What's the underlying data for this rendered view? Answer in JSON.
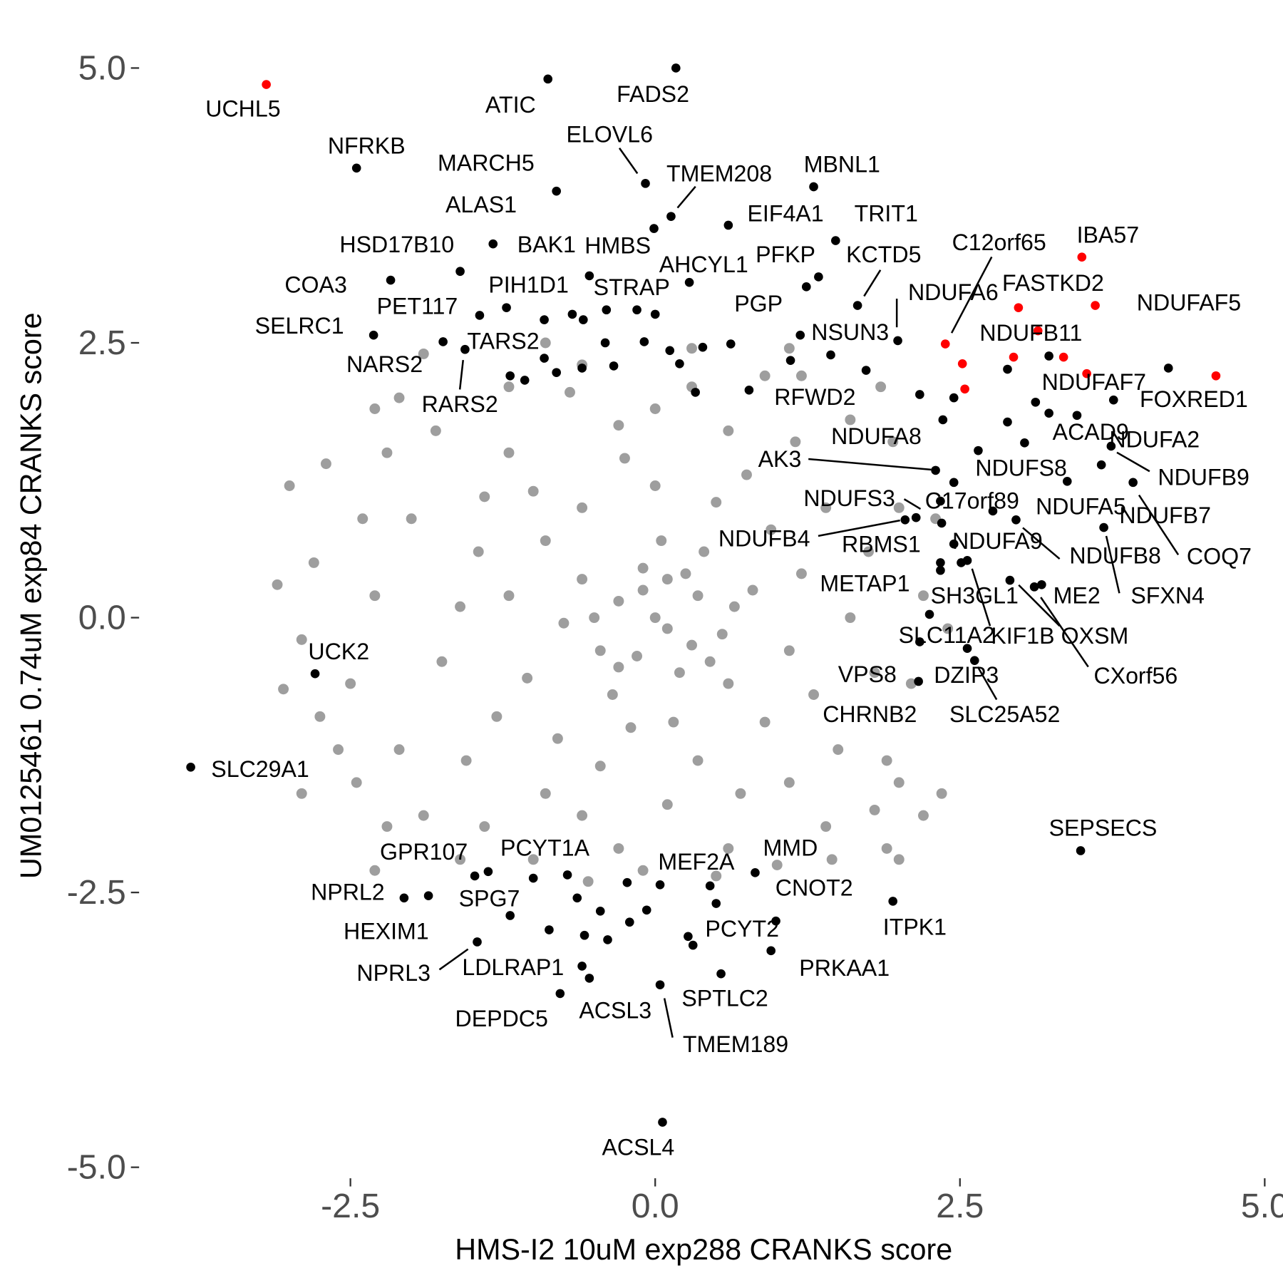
{
  "chart_data": {
    "type": "scatter",
    "xlabel": "HMS-I2 10uM exp288 CRANKS score",
    "ylabel": "UM0125461 0.74uM exp84 CRANKS score",
    "xlim": [
      -4.2,
      5.15
    ],
    "ylim": [
      -5.1,
      5.47
    ],
    "xticks": [
      -2.5,
      {
        "value": 0,
        "label": "0.0"
      },
      2.5,
      {
        "value": 5,
        "label": "5.0"
      }
    ],
    "yticks": [
      {
        "value": -5,
        "label": "-5.0"
      },
      -2.5,
      {
        "value": 0,
        "label": "0.0"
      },
      2.5,
      {
        "value": 5,
        "label": "5.0"
      }
    ],
    "grid": false,
    "series": [
      {
        "color": "#9e9e9e",
        "x": [
          0,
          -0.15,
          0.3,
          0.25,
          -0.5,
          0.65,
          -0.1,
          0.45,
          -0.3,
          0.1,
          0.1,
          0.35,
          -0.3,
          -0.1,
          0.2,
          -0.45,
          0.55,
          -0.6,
          0.05,
          0.4,
          -0.35,
          0.6,
          -0.75,
          0.8,
          -0.2,
          0.15,
          -0.9,
          0.95,
          1.1,
          -1.05,
          -0.6,
          0.5,
          0,
          -1.2,
          1.2,
          0.9,
          -0.8,
          0.35,
          -0.45,
          1.3,
          -1.3,
          -1.0,
          0.75,
          -0.25,
          1.4,
          -1.45,
          -1.6,
          1.6,
          1.5,
          -1.55,
          0.1,
          -0.3,
          0.6,
          -1.2,
          1.15,
          -0.9,
          0.7,
          1.75,
          -1.75,
          1.8,
          -1.4,
          0,
          -0.6,
          1.1,
          -2.0,
          2.0,
          2.1,
          -2.1,
          -1.8,
          1.6,
          0.3,
          -0.7,
          -0.3,
          0.6,
          1.4,
          -1.4,
          2.2,
          -2.3,
          -2.5,
          2.4,
          0.9,
          -1.2,
          -2.2,
          1.95,
          2.0,
          -1.9,
          -0.1,
          1.0,
          -1.0,
          2.3,
          -2.4,
          -2.6,
          1.2,
          -0.6,
          -2.7,
          -2.8,
          -2.75,
          -2.9,
          -2.2,
          1.9,
          2.2,
          2.0,
          1.9,
          -1.9,
          -2.1,
          -3.0,
          -2.9,
          -2.3,
          -2.3,
          0.3,
          1.1,
          -0.9,
          2.35,
          1.85,
          1.8,
          -3.1,
          -3.05,
          -2.45,
          0.5,
          -0.55,
          1.45,
          -1.6
        ],
        "y": [
          0,
          -0.35,
          -0.25,
          0.4,
          0,
          0.1,
          0.25,
          -0.4,
          -0.45,
          0.35,
          -0.1,
          0.2,
          0.15,
          0.45,
          -0.5,
          -0.3,
          -0.15,
          0.35,
          0.7,
          0.6,
          -0.7,
          -0.6,
          -0.05,
          0.25,
          -1.0,
          -0.95,
          0.7,
          0.8,
          -0.3,
          -0.55,
          1.0,
          1.05,
          1.2,
          0.2,
          0.4,
          -0.95,
          -1.1,
          -1.3,
          -1.35,
          -0.7,
          -0.9,
          1.15,
          1.3,
          1.45,
          1.0,
          0.6,
          0.1,
          0,
          -1.2,
          -1.3,
          -1.7,
          1.75,
          1.7,
          1.5,
          1.6,
          -1.6,
          -1.6,
          0.6,
          -0.4,
          -0.5,
          1.1,
          1.9,
          -1.8,
          -1.5,
          0.9,
          1.0,
          -0.6,
          -1.2,
          1.7,
          1.8,
          2.1,
          2.05,
          -2.1,
          -2.1,
          -1.9,
          -1.9,
          0.2,
          0.2,
          -0.6,
          -0.1,
          2.2,
          2.1,
          1.5,
          1.6,
          -1.5,
          -1.8,
          -2.3,
          -2.25,
          -2.2,
          0.9,
          0.9,
          -1.2,
          2.2,
          2.3,
          1.4,
          0.5,
          -0.9,
          -1.6,
          -1.9,
          -2.1,
          -1.8,
          -2.2,
          -1.3,
          2.4,
          2.0,
          1.2,
          -0.2,
          -2.3,
          1.9,
          2.45,
          2.45,
          2.5,
          -1.6,
          2.1,
          -1.75,
          0.3,
          -0.65,
          -1.5,
          -2.35,
          -2.4,
          -2.2,
          -2.2
        ]
      },
      {
        "color": "#000000",
        "x": [
          -0.88,
          0.17,
          -2.45,
          -0.08,
          -0.81,
          0.13,
          1.3,
          -1.33,
          -0.01,
          0.6,
          1.48,
          -1.6,
          -0.54,
          -0.15,
          1.34,
          1.24,
          1.66,
          0.28,
          -2.17,
          -2.31,
          -1.74,
          -1.44,
          -1.22,
          -0.91,
          -1.56,
          1.99,
          1.19,
          1.11,
          2.17,
          2.3,
          2.65,
          3.23,
          3.74,
          3.66,
          2.14,
          2.34,
          2.77,
          3.38,
          2.05,
          2.35,
          2.45,
          2.96,
          3.92,
          3.68,
          2.34,
          2.51,
          3.11,
          2.56,
          2.91,
          3.17,
          2.25,
          2.17,
          2.56,
          2.16,
          2.62,
          -2.79,
          -3.81,
          3.49,
          -1.48,
          -1.37,
          0.04,
          0.82,
          -2.06,
          -1.19,
          0.45,
          1.95,
          -1.86,
          0.27,
          -1.46,
          -0.6,
          0.95,
          0.54,
          -0.78,
          -0.54,
          0.04,
          0.06,
          -0.91,
          -0.68,
          -0.59,
          -0.4,
          0.0,
          -0.41,
          -0.09,
          0.12,
          0.39,
          0.62,
          -1.19,
          -1.07,
          -0.81,
          -0.6,
          -0.34,
          0.2,
          0.33,
          0.77,
          1.44,
          1.73,
          2.45,
          2.36,
          2.89,
          2.89,
          3.12,
          3.46,
          3.03,
          3.23,
          3.76,
          4.21,
          2.45,
          2.34,
          -1.0,
          -0.72,
          -0.64,
          -0.23,
          -0.45,
          -0.87,
          -0.58,
          -0.39,
          -0.21,
          -0.07,
          0.31,
          0.5,
          0.99
        ],
        "y": [
          4.9,
          5.0,
          4.09,
          3.95,
          3.88,
          3.65,
          3.92,
          3.4,
          3.54,
          3.57,
          3.43,
          3.15,
          3.11,
          2.8,
          3.1,
          3.01,
          2.84,
          3.05,
          3.07,
          2.57,
          2.51,
          2.75,
          2.82,
          2.71,
          2.44,
          2.52,
          2.57,
          2.34,
          2.03,
          1.34,
          1.52,
          1.86,
          1.56,
          1.39,
          0.91,
          1.06,
          0.97,
          1.24,
          0.89,
          0.86,
          0.67,
          0.89,
          1.23,
          0.82,
          0.43,
          0.5,
          0.28,
          0.52,
          0.34,
          0.3,
          0.03,
          -0.22,
          -0.28,
          -0.58,
          -0.39,
          -0.51,
          -1.36,
          -2.12,
          -2.35,
          -2.31,
          -2.43,
          -2.32,
          -2.55,
          -2.71,
          -2.44,
          -2.58,
          -2.53,
          -2.9,
          -2.95,
          -3.17,
          -3.03,
          -3.24,
          -3.42,
          -3.28,
          -3.34,
          -4.59,
          2.36,
          2.76,
          2.71,
          2.8,
          2.76,
          2.5,
          2.51,
          2.43,
          2.46,
          2.49,
          2.2,
          2.16,
          2.23,
          2.27,
          2.29,
          2.31,
          2.05,
          2.07,
          2.39,
          2.25,
          2.0,
          1.8,
          2.26,
          1.78,
          1.96,
          1.84,
          1.59,
          2.38,
          1.98,
          2.27,
          1.23,
          0.5,
          -2.37,
          -2.34,
          -2.55,
          -2.41,
          -2.67,
          -2.84,
          -2.89,
          -2.93,
          -2.77,
          -2.66,
          -2.98,
          -2.6,
          -2.76
        ],
        "labels": [
          "ATIC",
          "FADS2",
          "NFRKB",
          "ELOVL6",
          "MARCH5",
          "TMEM208",
          "MBNL1",
          "ALAS1",
          "HMBS",
          "EIF4A1",
          "TRIT1",
          "HSD17B10",
          "BAK1",
          "STRAP",
          "PFKP",
          "PGP",
          "KCTD5",
          "AHCYL1",
          "COA3",
          "SELRC1",
          "NARS2",
          "PET117",
          "PIH1D1",
          "TARS2",
          "RARS2",
          "NDUFA6",
          "NSUN3",
          "RFWD2",
          "NDUFA8",
          "AK3",
          "NDUFS8",
          "ACAD9",
          "NDUFA2",
          "NDUFB9",
          "NDUFS3",
          "C17orf89",
          "NDUFA5",
          "NDUFB7",
          "NDUFB4",
          "RBMS1",
          "NDUFA9",
          "NDUFB8",
          "COQ7",
          "SFXN4",
          "METAP1",
          "SH3GL1",
          "ME2",
          "KIF1B",
          "OXSM",
          "CXorf56",
          "SLC11A2",
          "CHRNB2",
          "DZIP3",
          "VPS8",
          "SLC25A52",
          "UCK2",
          "SLC29A1",
          "SEPSECS",
          "GPR107",
          "PCYT1A",
          "MEF2A",
          "MMD",
          "NPRL2",
          "SPG7",
          "CNOT2",
          "ITPK1",
          "HEXIM1",
          "PCYT2",
          "NPRL3",
          "LDLRAP1",
          "PRKAA1",
          "SPTLC2",
          "DEPDC5",
          "ACSL3",
          "TMEM189",
          "ACSL4",
          null,
          null,
          null,
          null,
          null,
          null,
          null,
          null,
          null,
          null,
          null,
          null,
          null,
          null,
          null,
          null,
          null,
          null,
          null,
          null,
          null,
          null,
          null,
          null,
          null,
          null,
          null,
          null,
          null,
          null,
          null,
          null,
          null,
          null,
          null,
          null,
          null,
          null,
          null,
          null,
          null,
          null,
          null,
          null,
          null
        ]
      },
      {
        "color": "#ff0000",
        "x": [
          -3.19,
          3.5,
          3.61,
          4.6,
          2.38,
          2.98,
          2.94,
          3.54,
          3.35,
          2.52,
          2.54,
          3.14
        ],
        "y": [
          4.85,
          3.28,
          2.84,
          2.2,
          2.49,
          2.82,
          2.37,
          2.22,
          2.37,
          2.31,
          2.08,
          2.61
        ],
        "labels": [
          "UCHL5",
          "IBA57",
          "NDUFAF5",
          "FOXRED1",
          "C12orf65",
          "FASTKD2",
          "NDUFB11",
          "NDUFAF7",
          null,
          null,
          null,
          null
        ]
      }
    ]
  }
}
